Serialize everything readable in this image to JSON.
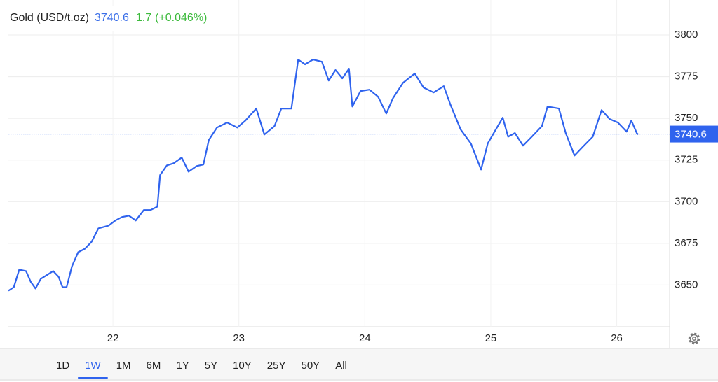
{
  "chart_data": {
    "type": "line",
    "title": "Gold (USD/t.oz)",
    "price": 3740.6,
    "change": 1.7,
    "change_label": "(+0.046%)",
    "x": [
      21.17,
      21.213,
      21.256,
      21.31,
      21.347,
      21.385,
      21.428,
      21.482,
      21.525,
      21.568,
      21.6,
      21.632,
      21.675,
      21.724,
      21.778,
      21.831,
      21.885,
      21.966,
      22.019,
      22.073,
      22.127,
      22.181,
      22.245,
      22.299,
      22.353,
      22.374,
      22.428,
      22.482,
      22.546,
      22.6,
      22.665,
      22.718,
      22.761,
      22.826,
      22.907,
      22.987,
      23.052,
      23.138,
      23.202,
      23.283,
      23.337,
      23.417,
      23.471,
      23.525,
      23.589,
      23.659,
      23.713,
      23.767,
      23.821,
      23.874,
      23.901,
      23.966,
      24.036,
      24.105,
      24.17,
      24.224,
      24.304,
      24.396,
      24.466,
      24.546,
      24.627,
      24.681,
      24.761,
      24.842,
      24.923,
      24.976,
      25.03,
      25.095,
      25.138,
      25.192,
      25.256,
      25.326,
      25.407,
      25.45,
      25.541,
      25.595,
      25.665,
      25.729,
      25.81,
      25.88,
      25.944,
      26.009,
      26.079,
      26.116,
      26.159,
      26.17
    ],
    "series": [
      {
        "name": "Gold",
        "color": "#2f63ee",
        "values": [
          3646.6,
          3648.7,
          3659.2,
          3658.4,
          3652,
          3647.9,
          3653.8,
          3656.3,
          3658.4,
          3655,
          3648.7,
          3648.7,
          3661.3,
          3669.7,
          3671.8,
          3676,
          3684,
          3685.7,
          3688.7,
          3690.8,
          3691.6,
          3688.7,
          3695,
          3695,
          3697,
          3716,
          3721.8,
          3723.1,
          3726.5,
          3718,
          3721.4,
          3722.3,
          3737,
          3744.5,
          3747.5,
          3744.5,
          3748.7,
          3755.9,
          3740.3,
          3745.4,
          3755.9,
          3755.9,
          3785.3,
          3782.4,
          3785.3,
          3784,
          3772.7,
          3779,
          3774,
          3779.8,
          3757.1,
          3766.4,
          3767.2,
          3763,
          3752.9,
          3762.2,
          3771.4,
          3776.9,
          3768.5,
          3765.5,
          3769.3,
          3758,
          3743.3,
          3734.9,
          3719.3,
          3734.9,
          3742,
          3750.4,
          3739,
          3741.2,
          3733.6,
          3739,
          3745.4,
          3757.1,
          3755.9,
          3741.2,
          3727.7,
          3732.8,
          3739,
          3755,
          3749.6,
          3747.5,
          3742,
          3748.7,
          3741.2,
          3740.3
        ]
      }
    ],
    "xlim": [
      21.17,
      26.42
    ],
    "xticks": [
      22,
      23,
      24,
      25,
      26
    ],
    "ylim": [
      3625,
      3821
    ],
    "yticks": [
      3650,
      3675,
      3700,
      3725,
      3750,
      3775,
      3800
    ],
    "grid": true,
    "ranges": [
      "1D",
      "1W",
      "1M",
      "6M",
      "1Y",
      "5Y",
      "10Y",
      "25Y",
      "50Y",
      "All"
    ],
    "selected_range": "1W"
  }
}
